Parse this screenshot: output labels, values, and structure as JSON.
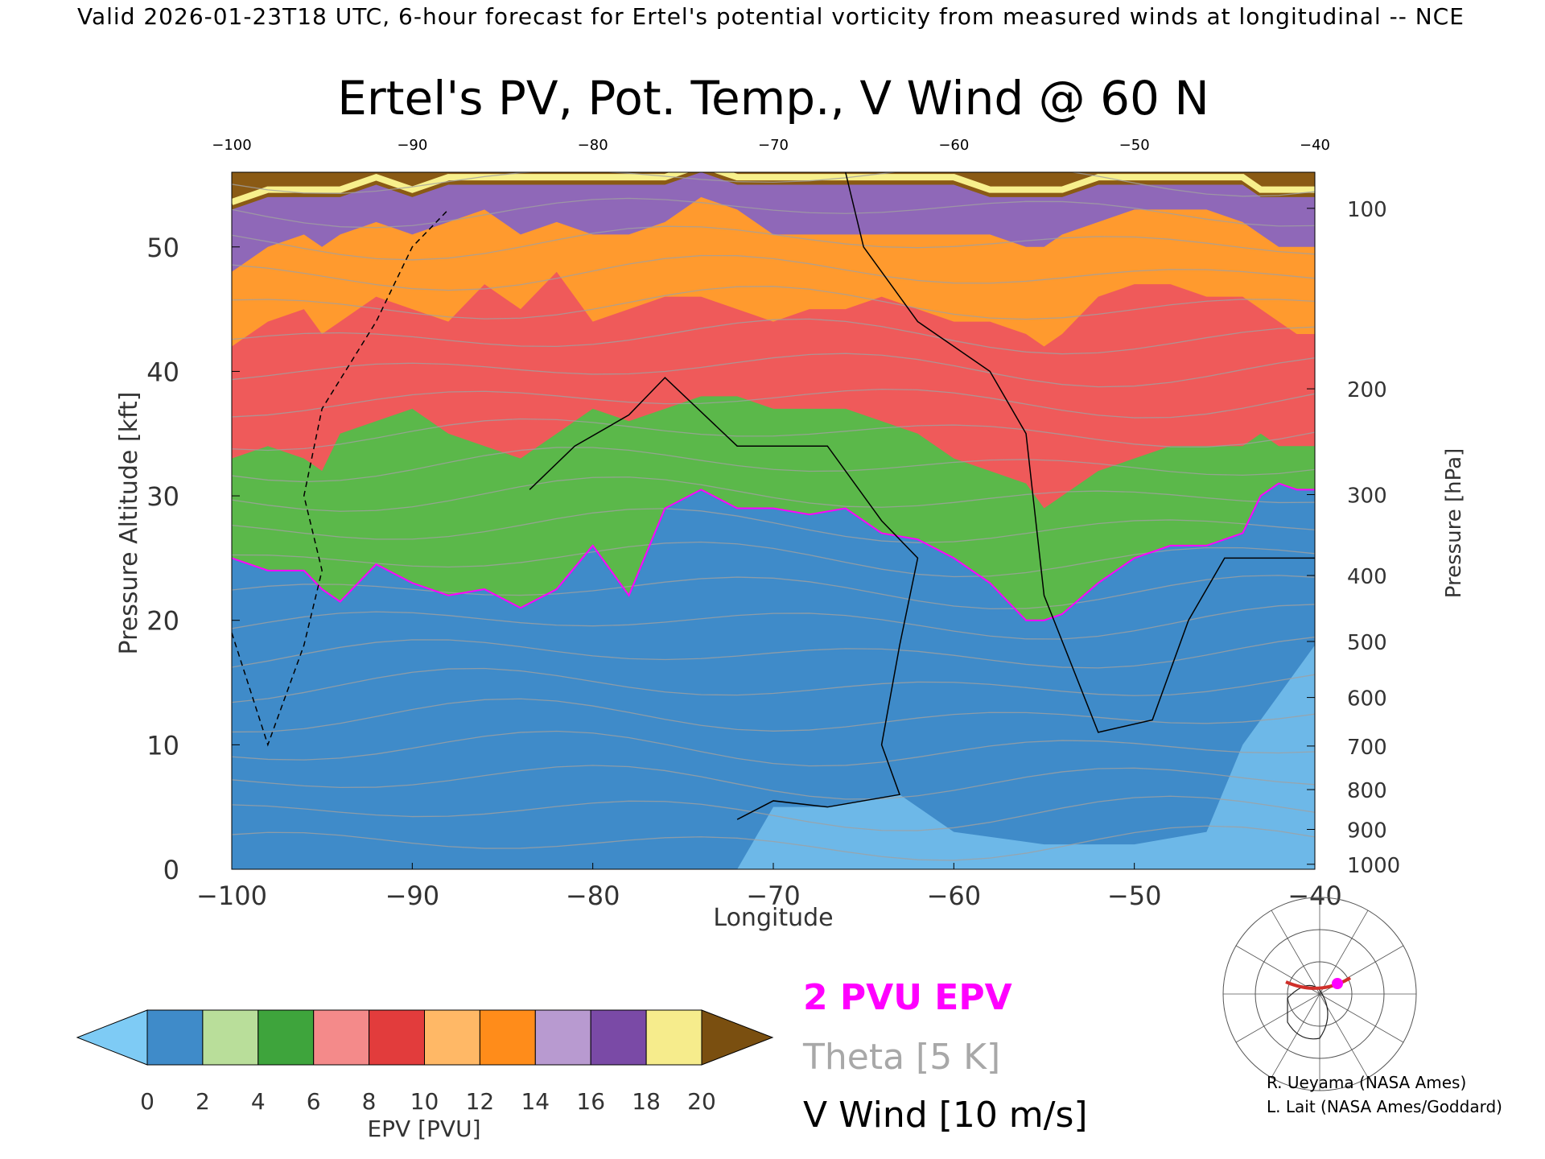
{
  "header": {
    "banner": "Valid 2026-01-23T18 UTC, 6-hour forecast for Ertel's potential vorticity from measured winds at longitudinal -- NCE"
  },
  "credits": {
    "line1": "R. Ueyama (NASA Ames)",
    "line2": "L. Lait (NASA Ames/Goddard)"
  },
  "legend": {
    "epv_line": "2 PVU EPV",
    "theta_line": "Theta [5 K]",
    "wind_line": "V Wind [10 m/s]",
    "colors": {
      "epv": "#ff00ff",
      "theta": "#a0a0a0",
      "wind": "#000000"
    }
  },
  "inset_map": {
    "name": "polar-locator-map",
    "section_color": "#d0302a",
    "marker_color": "#ff00ff"
  },
  "colorbar": {
    "label": "EPV [PVU]",
    "ticks": [
      "0",
      "2",
      "4",
      "6",
      "8",
      "10",
      "12",
      "14",
      "16",
      "18",
      "20"
    ],
    "under_color": "#7ecbf5",
    "over_color": "#7a4f10",
    "colors": [
      "#3a86c8",
      "#2f74b8",
      "#9ed28a",
      "#6fc15a",
      "#2a9a34",
      "#f7a3a3",
      "#e84a4a",
      "#ffb866",
      "#ff8c1a",
      "#c9a9d6",
      "#7a4aa6",
      "#fff29a",
      "#8a5a14"
    ]
  },
  "chart_data": {
    "type": "heatmap",
    "title": "Ertel's PV, Pot. Temp., V Wind @ 60 N",
    "xlabel": "Longitude",
    "ylabel_left": "Pressure Altitude [kft]",
    "ylabel_right": "Pressure [hPa]",
    "xlim": [
      -100,
      -40
    ],
    "ylim": [
      0,
      56
    ],
    "x_ticks": [
      "-100",
      "-90",
      "-80",
      "-70",
      "-60",
      "-50",
      "-40"
    ],
    "top_x_ticks": [
      "-100",
      "-90",
      "-80",
      "-70",
      "-60",
      "-50",
      "-40"
    ],
    "y_ticks_left": [
      "0",
      "10",
      "20",
      "30",
      "40",
      "50"
    ],
    "y_ticks_right": [
      {
        "label": "100",
        "kft": 53.1
      },
      {
        "label": "200",
        "kft": 38.6
      },
      {
        "label": "300",
        "kft": 30.1
      },
      {
        "label": "400",
        "kft": 23.6
      },
      {
        "label": "500",
        "kft": 18.3
      },
      {
        "label": "600",
        "kft": 13.8
      },
      {
        "label": "700",
        "kft": 9.9
      },
      {
        "label": "800",
        "kft": 6.4
      },
      {
        "label": "900",
        "kft": 3.2
      },
      {
        "label": "1000",
        "kft": 0.4
      }
    ],
    "tropopause_2pvu_kft": {
      "lon": [
        -100,
        -98,
        -96,
        -95,
        -94,
        -92,
        -90,
        -88,
        -86,
        -84,
        -82,
        -80,
        -78,
        -76,
        -74,
        -72,
        -70,
        -68,
        -66,
        -64,
        -62,
        -60,
        -58,
        -56,
        -55,
        -54,
        -52,
        -50,
        -48,
        -46,
        -44,
        -43,
        -42,
        -41,
        -40
      ],
      "kft": [
        25,
        24,
        24,
        22.5,
        21.5,
        24.5,
        23,
        22,
        22.5,
        21,
        22.5,
        26,
        22,
        29,
        30.5,
        29,
        29,
        28.5,
        29,
        27,
        26.5,
        25,
        23,
        20,
        20,
        20.5,
        23,
        25,
        26,
        26,
        27,
        30,
        31,
        30.5,
        30.5
      ]
    },
    "epv_bands": [
      {
        "pvu_range": "0-2",
        "kft_top": [
          25,
          24,
          24,
          22.5,
          21.5,
          24.5,
          23,
          22,
          22.5,
          21,
          22.5,
          26,
          22,
          29,
          30.5,
          29,
          29,
          28.5,
          29,
          27,
          26.5,
          25,
          23,
          20,
          20,
          20.5,
          23,
          25,
          26,
          26,
          27,
          30,
          31,
          30.5,
          30.5
        ]
      },
      {
        "pvu_range": "2-6",
        "kft_top": [
          33,
          34,
          33,
          32,
          35,
          36,
          37,
          35,
          34,
          33,
          35,
          37,
          36,
          37,
          38,
          38,
          37,
          37,
          37,
          36,
          35,
          33,
          32,
          31,
          29,
          30,
          32,
          33,
          34,
          34,
          34,
          35,
          34,
          34,
          34
        ]
      },
      {
        "pvu_range": "6-10",
        "kft_top": [
          42,
          44,
          45,
          43,
          44,
          46,
          45,
          44,
          47,
          45,
          48,
          44,
          45,
          46,
          46,
          45,
          44,
          45,
          45,
          46,
          45,
          44,
          44,
          43,
          42,
          43,
          46,
          47,
          47,
          46,
          46,
          45,
          44,
          43,
          43
        ]
      },
      {
        "pvu_range": "10-14",
        "kft_top": [
          48,
          50,
          51,
          50,
          51,
          52,
          51,
          52,
          53,
          51,
          52,
          51,
          51,
          52,
          54,
          53,
          51,
          51,
          51,
          51,
          51,
          51,
          51,
          50,
          50,
          51,
          52,
          53,
          53,
          53,
          52,
          51,
          50,
          50,
          50
        ]
      },
      {
        "pvu_range": "14-18",
        "kft_top": [
          53,
          54,
          54,
          54,
          54,
          55,
          54,
          55,
          55,
          55,
          55,
          55,
          55,
          55,
          56,
          55,
          55,
          55,
          55,
          55,
          55,
          55,
          54,
          54,
          54,
          54,
          55,
          55,
          55,
          55,
          55,
          54,
          54,
          54,
          54
        ]
      }
    ],
    "v_wind_zero_contour": [
      [
        -83.5,
        30.5
      ],
      [
        -81,
        34
      ],
      [
        -78,
        36.5
      ],
      [
        -76,
        39.5
      ],
      [
        -72,
        34
      ],
      [
        -67,
        34
      ],
      [
        -64,
        28
      ],
      [
        -62,
        25
      ],
      [
        -63,
        18
      ],
      [
        -64,
        10
      ],
      [
        -63,
        6
      ],
      [
        -67,
        5
      ],
      [
        -70,
        5.5
      ],
      [
        -72,
        4
      ]
    ],
    "v_wind_minus10_contour": [
      [
        -100,
        19
      ],
      [
        -98,
        10
      ],
      [
        -96,
        18
      ],
      [
        -95,
        24
      ],
      [
        -96,
        30
      ],
      [
        -95,
        37
      ],
      [
        -92,
        44
      ],
      [
        -90,
        50
      ],
      [
        -88,
        53
      ]
    ],
    "v_wind_plus10_contour": [
      [
        -66,
        56
      ],
      [
        -65,
        50
      ],
      [
        -62,
        44
      ],
      [
        -58,
        40
      ],
      [
        -56,
        35
      ],
      [
        -55,
        22
      ],
      [
        -52,
        11
      ],
      [
        -49,
        12
      ],
      [
        -47,
        20
      ],
      [
        -45,
        25
      ],
      [
        -42,
        25
      ],
      [
        -40,
        25
      ]
    ]
  }
}
